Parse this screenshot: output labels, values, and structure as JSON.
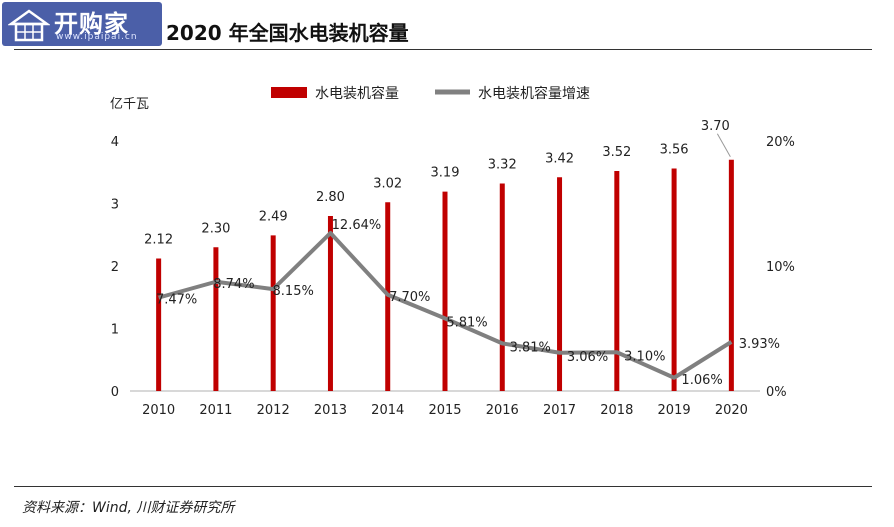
{
  "logo": {
    "text": "开购家",
    "url": "www.ipaipai.cn"
  },
  "title": "2020 年全国水电装机容量",
  "source": "资料来源：Wind, 川财证券研究所",
  "colors": {
    "bar": "#c00000",
    "line": "#808080"
  },
  "chart_data": {
    "type": "bar",
    "categories": [
      "2010",
      "2011",
      "2012",
      "2013",
      "2014",
      "2015",
      "2016",
      "2017",
      "2018",
      "2019",
      "2020"
    ],
    "series": [
      {
        "name": "水电装机容量",
        "type": "bar",
        "axis": "left",
        "values": [
          2.12,
          2.3,
          2.49,
          2.8,
          3.02,
          3.19,
          3.32,
          3.42,
          3.52,
          3.56,
          3.7
        ],
        "labels": [
          "2.12",
          "2.30",
          "2.49",
          "2.80",
          "3.02",
          "3.19",
          "3.32",
          "3.42",
          "3.52",
          "3.56",
          "3.70"
        ]
      },
      {
        "name": "水电装机容量增速",
        "type": "line",
        "axis": "right",
        "values": [
          7.47,
          8.74,
          8.15,
          12.64,
          7.7,
          5.81,
          3.81,
          3.06,
          3.1,
          1.06,
          3.93
        ],
        "labels": [
          "7.47%",
          "8.74%",
          "8.15%",
          "12.64%",
          "7.70%",
          "5.81%",
          "3.81%",
          "3.06%",
          "3.10%",
          "1.06%",
          "3.93%"
        ]
      }
    ],
    "ylabel": "亿千瓦",
    "ylim": [
      0,
      4
    ],
    "yticks": [
      "0",
      "1",
      "2",
      "3",
      "4"
    ],
    "y2lim": [
      0,
      20
    ],
    "y2ticks": [
      "0%",
      "10%",
      "20%"
    ],
    "legend": "top",
    "grid": false
  }
}
